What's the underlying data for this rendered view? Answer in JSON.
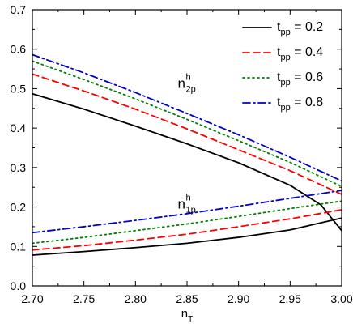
{
  "chart_data": {
    "type": "line",
    "xlabel": {
      "base": "n",
      "sub": "T"
    },
    "ylabel": "",
    "xlim": [
      2.7,
      3.0
    ],
    "ylim": [
      0.0,
      0.7
    ],
    "xticks": [
      "2.70",
      "2.75",
      "2.80",
      "2.85",
      "2.90",
      "2.95",
      "3.00"
    ],
    "yticks": [
      "0.0",
      "0.1",
      "0.2",
      "0.3",
      "0.4",
      "0.5",
      "0.6",
      "0.7"
    ],
    "legend_placement": "top-right",
    "grid": false,
    "legend": [
      {
        "prefix": "t",
        "sub": "pp",
        "suffix": " = 0.2",
        "color": "#000000",
        "dash": "solid"
      },
      {
        "prefix": "t",
        "sub": "pp",
        "suffix": " = 0.4",
        "color": "#ff0000",
        "dash": "dashed"
      },
      {
        "prefix": "t",
        "sub": "pp",
        "suffix": " = 0.6",
        "color": "#008000",
        "dash": "dotted"
      },
      {
        "prefix": "t",
        "sub": "pp",
        "suffix": " = 0.8",
        "color": "#0000cc",
        "dash": "dashdot"
      }
    ],
    "annotations": [
      {
        "base": "n",
        "sup": "h",
        "sub": "2p",
        "x": 2.841,
        "y": 0.502
      },
      {
        "base": "n",
        "sup": "h",
        "sub": "1p",
        "x": 2.841,
        "y": 0.196
      }
    ],
    "series": [
      {
        "group": "n2p",
        "color": "#000000",
        "dash": "solid",
        "points": [
          [
            2.7,
            0.487
          ],
          [
            2.75,
            0.448
          ],
          [
            2.8,
            0.405
          ],
          [
            2.85,
            0.36
          ],
          [
            2.9,
            0.312
          ],
          [
            2.95,
            0.255
          ],
          [
            2.98,
            0.205
          ],
          [
            3.0,
            0.14
          ]
        ]
      },
      {
        "group": "n2p",
        "color": "#ff0000",
        "dash": "dashed",
        "points": [
          [
            2.7,
            0.537
          ],
          [
            2.75,
            0.494
          ],
          [
            2.8,
            0.448
          ],
          [
            2.85,
            0.398
          ],
          [
            2.9,
            0.345
          ],
          [
            2.95,
            0.292
          ],
          [
            3.0,
            0.232
          ]
        ]
      },
      {
        "group": "n2p",
        "color": "#008000",
        "dash": "dotted",
        "points": [
          [
            2.7,
            0.57
          ],
          [
            2.75,
            0.523
          ],
          [
            2.8,
            0.474
          ],
          [
            2.85,
            0.422
          ],
          [
            2.9,
            0.368
          ],
          [
            2.95,
            0.313
          ],
          [
            3.0,
            0.252
          ]
        ]
      },
      {
        "group": "n2p",
        "color": "#0000cc",
        "dash": "dashdot",
        "points": [
          [
            2.7,
            0.586
          ],
          [
            2.75,
            0.54
          ],
          [
            2.8,
            0.49
          ],
          [
            2.85,
            0.437
          ],
          [
            2.9,
            0.383
          ],
          [
            2.95,
            0.326
          ],
          [
            3.0,
            0.266
          ]
        ]
      },
      {
        "group": "n1p",
        "color": "#000000",
        "dash": "solid",
        "points": [
          [
            2.7,
            0.078
          ],
          [
            2.75,
            0.087
          ],
          [
            2.8,
            0.097
          ],
          [
            2.85,
            0.108
          ],
          [
            2.9,
            0.123
          ],
          [
            2.95,
            0.142
          ],
          [
            3.0,
            0.172
          ]
        ]
      },
      {
        "group": "n1p",
        "color": "#ff0000",
        "dash": "dashed",
        "points": [
          [
            2.7,
            0.091
          ],
          [
            2.75,
            0.102
          ],
          [
            2.8,
            0.116
          ],
          [
            2.85,
            0.131
          ],
          [
            2.9,
            0.15
          ],
          [
            2.95,
            0.17
          ],
          [
            3.0,
            0.193
          ]
        ]
      },
      {
        "group": "n1p",
        "color": "#008000",
        "dash": "dotted",
        "points": [
          [
            2.7,
            0.108
          ],
          [
            2.75,
            0.123
          ],
          [
            2.8,
            0.14
          ],
          [
            2.85,
            0.157
          ],
          [
            2.9,
            0.176
          ],
          [
            2.95,
            0.196
          ],
          [
            3.0,
            0.215
          ]
        ]
      },
      {
        "group": "n1p",
        "color": "#0000cc",
        "dash": "dashdot",
        "points": [
          [
            2.7,
            0.135
          ],
          [
            2.75,
            0.15
          ],
          [
            2.8,
            0.166
          ],
          [
            2.85,
            0.183
          ],
          [
            2.9,
            0.202
          ],
          [
            2.95,
            0.222
          ],
          [
            3.0,
            0.242
          ]
        ]
      }
    ]
  }
}
